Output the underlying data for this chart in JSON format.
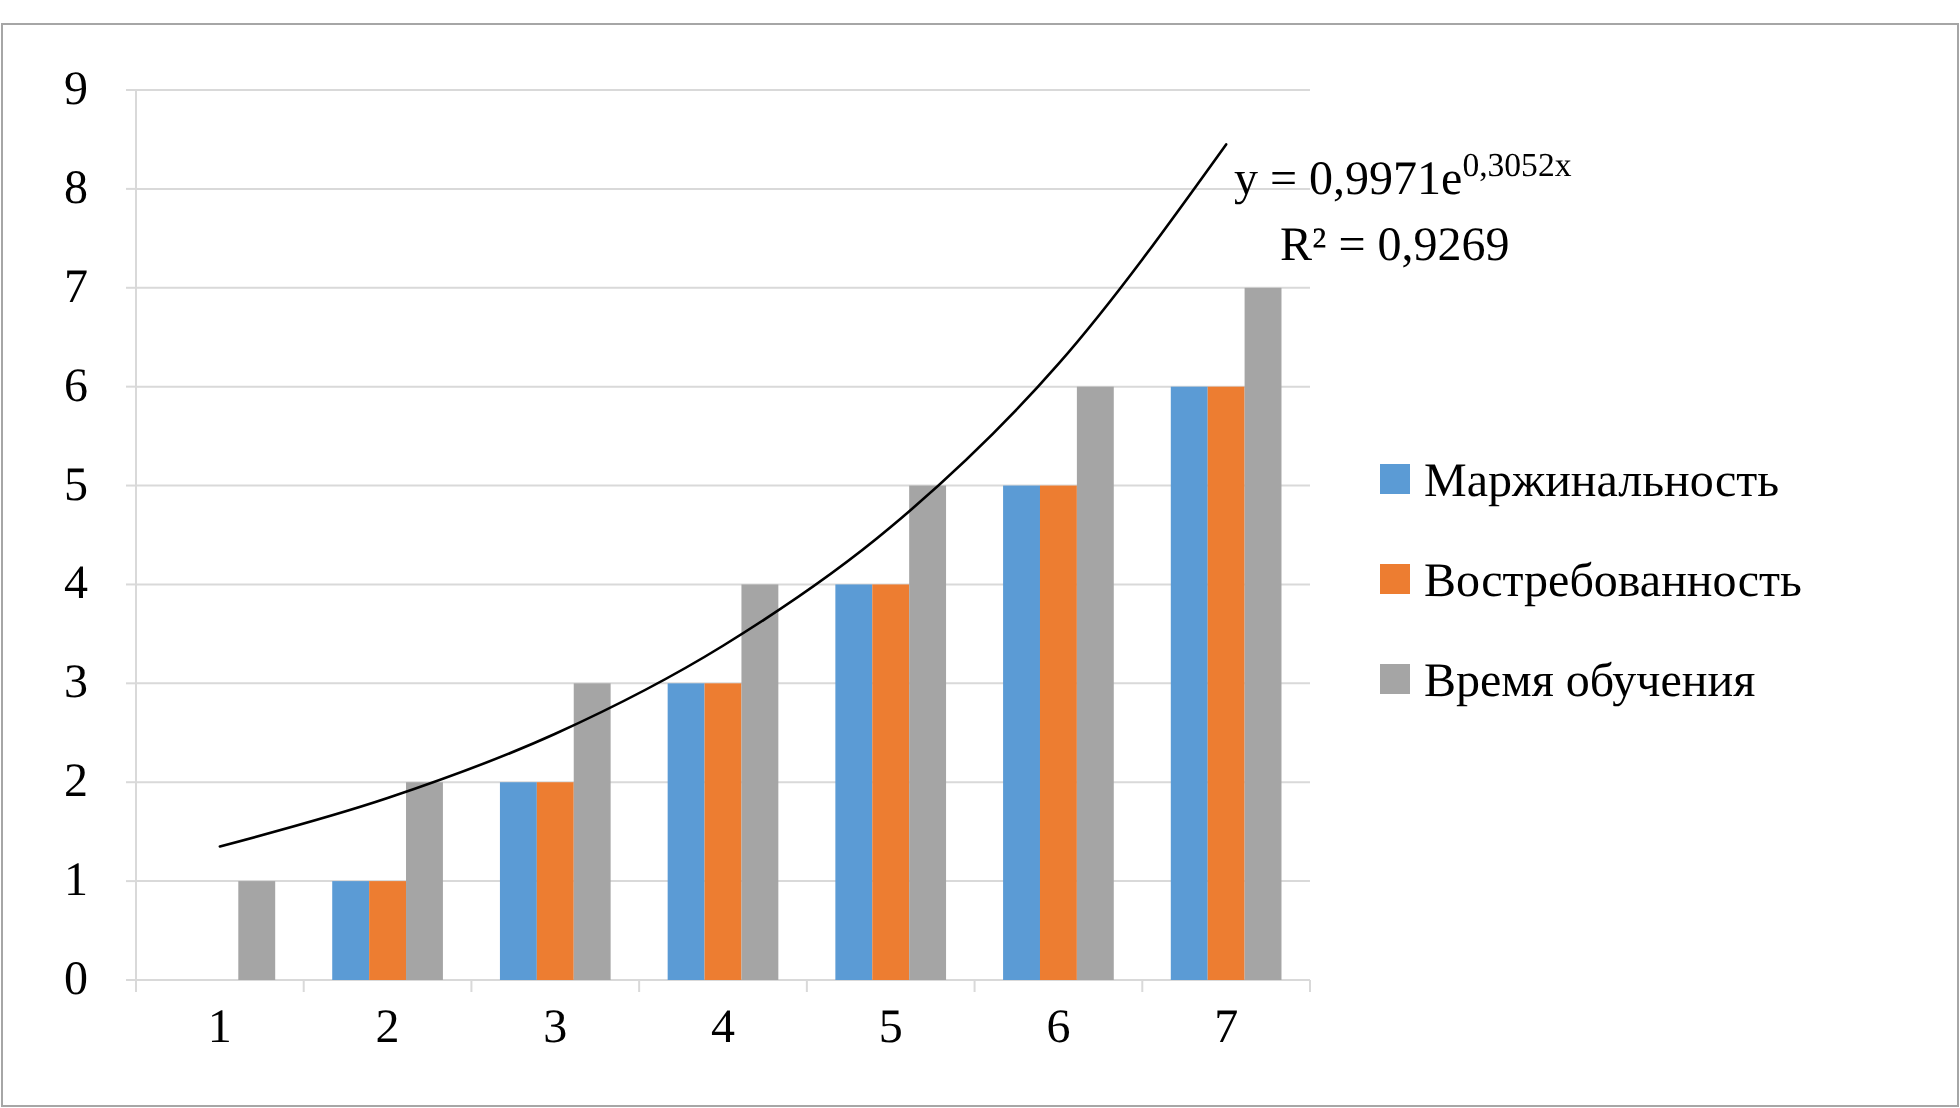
{
  "chart_data": {
    "type": "bar",
    "categories": [
      "1",
      "2",
      "3",
      "4",
      "5",
      "6",
      "7"
    ],
    "ylim": [
      0,
      9
    ],
    "yticks": [
      0,
      1,
      2,
      3,
      4,
      5,
      6,
      7,
      8,
      9
    ],
    "grid": "y",
    "legend": "right",
    "series": [
      {
        "name": "Маржинальность",
        "color": "#5b9bd5",
        "values": [
          0,
          1,
          2,
          3,
          4,
          5,
          6
        ]
      },
      {
        "name": "Востребованность",
        "color": "#ed7d31",
        "values": [
          0,
          1,
          2,
          3,
          4,
          5,
          6
        ]
      },
      {
        "name": "Время обучения",
        "color": "#a5a5a5",
        "values": [
          1,
          2,
          3,
          4,
          5,
          6,
          7
        ]
      },
      {
        "type": "line",
        "color": "#000000",
        "values": [
          1.35,
          1.84,
          2.49,
          3.38,
          4.58,
          6.23,
          8.45
        ]
      }
    ],
    "annotations": [
      "y = 0,9971e$^{0,3052x}$",
      "R² = 0,9269"
    ]
  }
}
